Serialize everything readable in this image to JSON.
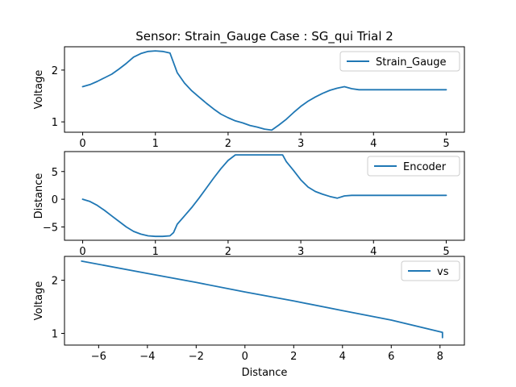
{
  "title": "Sensor: Strain_Gauge Case : SG_qui Trial 2",
  "colors": {
    "series": "#1f77b4",
    "axes": "#000000",
    "background": "#ffffff"
  },
  "chart_data": [
    {
      "type": "line",
      "xlabel": "",
      "ylabel": "Voltage",
      "xlim": [
        -0.25,
        5.25
      ],
      "ylim": [
        0.8,
        2.45
      ],
      "xticks": [
        0,
        1,
        2,
        3,
        4,
        5
      ],
      "yticks": [
        1,
        2
      ],
      "legend": "top-right",
      "grid": false,
      "series": [
        {
          "name": "Strain_Gauge",
          "x": [
            0,
            0.1,
            0.2,
            0.3,
            0.4,
            0.5,
            0.6,
            0.7,
            0.8,
            0.9,
            1.0,
            1.1,
            1.2,
            1.3,
            1.4,
            1.5,
            1.6,
            1.7,
            1.8,
            1.9,
            2.0,
            2.1,
            2.2,
            2.3,
            2.4,
            2.5,
            2.6,
            2.7,
            2.8,
            2.9,
            3.0,
            3.1,
            3.2,
            3.3,
            3.4,
            3.5,
            3.6,
            3.7,
            3.8,
            4.0,
            4.5,
            5.0
          ],
          "values": [
            1.68,
            1.72,
            1.78,
            1.85,
            1.92,
            2.02,
            2.13,
            2.25,
            2.32,
            2.36,
            2.37,
            2.36,
            2.33,
            1.95,
            1.75,
            1.6,
            1.48,
            1.36,
            1.25,
            1.15,
            1.08,
            1.02,
            0.98,
            0.93,
            0.9,
            0.86,
            0.84,
            0.94,
            1.05,
            1.18,
            1.3,
            1.4,
            1.48,
            1.55,
            1.61,
            1.65,
            1.68,
            1.64,
            1.62,
            1.62,
            1.62,
            1.62
          ]
        }
      ]
    },
    {
      "type": "line",
      "xlabel": "",
      "ylabel": "Distance",
      "xlim": [
        -0.25,
        5.25
      ],
      "ylim": [
        -7.4,
        8.6
      ],
      "xticks": [
        0,
        1,
        2,
        3,
        4,
        5
      ],
      "yticks": [
        -5,
        0,
        5
      ],
      "legend": "top-right",
      "grid": false,
      "series": [
        {
          "name": "Encoder",
          "x": [
            0,
            0.1,
            0.2,
            0.3,
            0.4,
            0.5,
            0.6,
            0.7,
            0.8,
            0.9,
            1.0,
            1.1,
            1.2,
            1.25,
            1.3,
            1.4,
            1.5,
            1.6,
            1.7,
            1.8,
            1.9,
            2.0,
            2.1,
            2.2,
            2.3,
            2.4,
            2.5,
            2.6,
            2.7,
            2.75,
            2.8,
            2.9,
            3.0,
            3.1,
            3.2,
            3.3,
            3.4,
            3.5,
            3.6,
            3.7,
            4.0,
            4.5,
            5.0
          ],
          "values": [
            0,
            -0.4,
            -1.1,
            -2.0,
            -3.0,
            -4.0,
            -5.0,
            -5.8,
            -6.3,
            -6.6,
            -6.7,
            -6.7,
            -6.6,
            -6.0,
            -4.5,
            -3.0,
            -1.5,
            0.2,
            2.0,
            3.8,
            5.5,
            7.0,
            8.0,
            8.0,
            8.0,
            8.0,
            8.0,
            8.0,
            8.0,
            8.0,
            6.8,
            5.2,
            3.5,
            2.2,
            1.4,
            0.9,
            0.5,
            0.2,
            0.6,
            0.7,
            0.7,
            0.7,
            0.7
          ]
        }
      ]
    },
    {
      "type": "line",
      "xlabel": "Distance",
      "ylabel": "Voltage",
      "xlim": [
        -7.4,
        9.0
      ],
      "ylim": [
        0.78,
        2.45
      ],
      "xticks": [
        -6,
        -4,
        -2,
        0,
        2,
        4,
        6,
        8
      ],
      "yticks": [
        1,
        2
      ],
      "legend": "top-right",
      "grid": false,
      "series": [
        {
          "name": "vs",
          "x": [
            -6.7,
            -4,
            -2,
            0,
            2,
            4,
            6,
            8.0,
            8.1,
            8.1
          ],
          "values": [
            2.36,
            2.13,
            1.96,
            1.78,
            1.61,
            1.43,
            1.25,
            1.03,
            1.02,
            0.92
          ]
        }
      ]
    }
  ]
}
